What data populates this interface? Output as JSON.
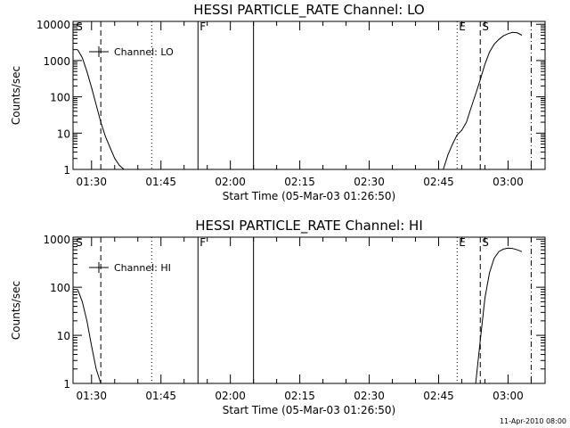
{
  "chart_data": [
    {
      "type": "line",
      "title": "HESSI PARTICLE_RATE Channel: LO",
      "xlabel": "Start Time (05-Mar-03 01:26:50)",
      "ylabel": "Counts/sec",
      "yscale": "log",
      "xlim_minutes_since_0126": [
        0,
        102
      ],
      "ylim": [
        1,
        12000
      ],
      "x_tick_labels": [
        "01:30",
        "01:45",
        "02:00",
        "02:15",
        "02:30",
        "02:45",
        "03:00"
      ],
      "y_tick_labels": [
        "1",
        "10",
        "100",
        "1000",
        "10000"
      ],
      "y_tick_values": [
        1,
        10,
        100,
        1000,
        10000
      ],
      "legend": "Channel: LO",
      "legend_position": "top-left",
      "series": [
        {
          "x": [
            "01:27",
            "01:28",
            "01:29",
            "01:30",
            "01:31",
            "01:32",
            "01:33",
            "01:34",
            "01:35",
            "01:36",
            "01:37"
          ],
          "y": [
            2000,
            1200,
            500,
            180,
            60,
            20,
            8,
            4,
            2,
            1.3,
            1
          ]
        },
        {
          "x": [
            "02:46",
            "02:47",
            "02:48",
            "02:49",
            "02:50",
            "02:51",
            "02:52",
            "02:53",
            "02:54",
            "02:55",
            "02:56",
            "02:57",
            "02:58",
            "02:59",
            "03:00",
            "03:01",
            "03:02",
            "03:03"
          ],
          "y": [
            1,
            2.5,
            5,
            9,
            12,
            20,
            50,
            120,
            300,
            800,
            1700,
            2800,
            3800,
            4800,
            5500,
            6000,
            5800,
            5000
          ]
        }
      ],
      "markers": [
        {
          "label": "S",
          "time": "01:27",
          "style": "labeled"
        },
        {
          "label": "",
          "time": "01:32",
          "style": "dashed"
        },
        {
          "label": "",
          "time": "01:43",
          "style": "dotted"
        },
        {
          "label": "F",
          "time": "01:53",
          "style": "solid"
        },
        {
          "label": "",
          "time": "02:05",
          "style": "solid"
        },
        {
          "label": "E",
          "time": "02:49",
          "style": "dotted"
        },
        {
          "label": "S",
          "time": "02:54",
          "style": "dashed"
        },
        {
          "label": "",
          "time": "03:05",
          "style": "dash-dot"
        }
      ]
    },
    {
      "type": "line",
      "title": "HESSI PARTICLE_RATE Channel: HI",
      "xlabel": "Start Time (05-Mar-03 01:26:50)",
      "ylabel": "Counts/sec",
      "yscale": "log",
      "xlim_minutes_since_0126": [
        0,
        102
      ],
      "ylim": [
        1,
        1100
      ],
      "x_tick_labels": [
        "01:30",
        "01:45",
        "02:00",
        "02:15",
        "02:30",
        "02:45",
        "03:00"
      ],
      "y_tick_labels": [
        "1",
        "10",
        "100",
        "1000"
      ],
      "y_tick_values": [
        1,
        10,
        100,
        1000
      ],
      "legend": "Channel: HI",
      "legend_position": "top-left",
      "series": [
        {
          "x": [
            "01:27",
            "01:28",
            "01:29",
            "01:30",
            "01:31",
            "01:32"
          ],
          "y": [
            90,
            50,
            20,
            6,
            2,
            1
          ]
        },
        {
          "x": [
            "02:53",
            "02:54",
            "02:55",
            "02:56",
            "02:57",
            "02:58",
            "02:59",
            "03:00",
            "03:01",
            "03:02",
            "03:03"
          ],
          "y": [
            1,
            8,
            60,
            200,
            400,
            550,
            620,
            650,
            640,
            600,
            550
          ]
        }
      ],
      "markers": [
        {
          "label": "S",
          "time": "01:27",
          "style": "labeled"
        },
        {
          "label": "",
          "time": "01:32",
          "style": "dashed"
        },
        {
          "label": "",
          "time": "01:43",
          "style": "dotted"
        },
        {
          "label": "F",
          "time": "01:53",
          "style": "solid"
        },
        {
          "label": "",
          "time": "02:05",
          "style": "solid"
        },
        {
          "label": "E",
          "time": "02:49",
          "style": "dotted"
        },
        {
          "label": "S",
          "time": "02:54",
          "style": "dashed"
        },
        {
          "label": "",
          "time": "03:05",
          "style": "dash-dot"
        }
      ]
    }
  ],
  "footer": {
    "timestamp": "11-Apr-2010 08:00"
  }
}
